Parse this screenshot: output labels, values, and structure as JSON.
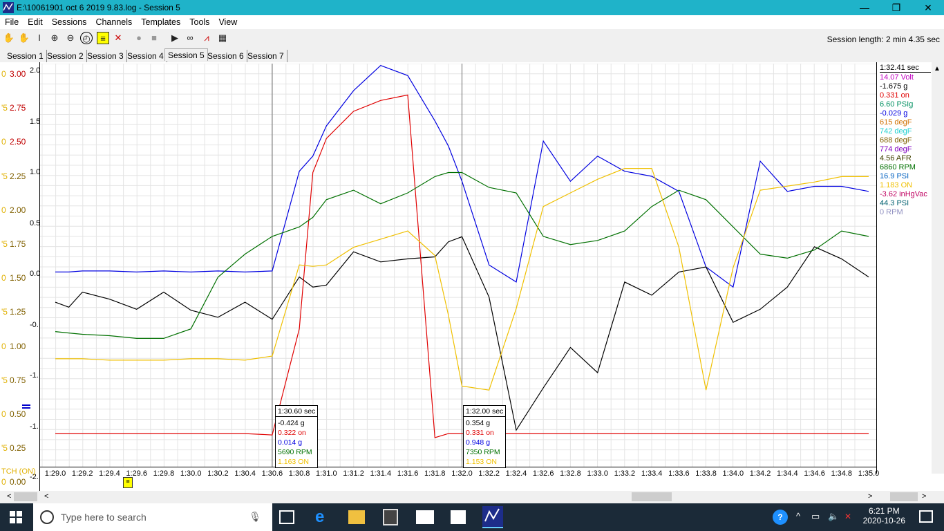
{
  "window": {
    "title": "E:\\10061901 oct 6 2019 9.83.log - Session 5",
    "minimize": "—",
    "maximize": "❐",
    "close": "✕"
  },
  "menu": [
    "File",
    "Edit",
    "Sessions",
    "Channels",
    "Templates",
    "Tools",
    "View"
  ],
  "toolbar": {
    "session_length": "Session length:  2 min 4.35 sec"
  },
  "tabs": [
    "Session 1",
    "Session 2",
    "Session 3",
    "Session 4",
    "Session 5",
    "Session 6",
    "Session 7"
  ],
  "active_tab": "Session 5",
  "y_axis_left": {
    "outer_yellow": [
      "0",
      "'5",
      "0",
      "'5",
      "0",
      "'5",
      "0",
      "'5",
      "0",
      "'5",
      "0",
      "'5",
      "0"
    ],
    "red_ticks": [
      "3.00",
      "2.75",
      "2.50",
      "2.25",
      "2.00",
      "1.75",
      "1.50",
      "1.25",
      "1.00",
      "0.75",
      "0.50",
      "0.25",
      "0.00"
    ],
    "inner_ticks": [
      "2.0",
      "1.5",
      "1.0",
      "0.5",
      "0.0",
      "-0.",
      "-1.",
      "-1.",
      "-2."
    ],
    "bottom_label": "TCH (ON)"
  },
  "x_axis": {
    "ticks": [
      "1:29.0",
      "1:29.2",
      "1:29.4",
      "1:29.6",
      "1:29.8",
      "1:30.0",
      "1:30.2",
      "1:30.4",
      "1:30.6",
      "1:30.8",
      "1:31.0",
      "1:31.2",
      "1:31.4",
      "1:31.6",
      "1:31.8",
      "1:32.0",
      "1:32.2",
      "1:32.4",
      "1:32.6",
      "1:32.8",
      "1:33.0",
      "1:33.2",
      "1:33.4",
      "1:33.6",
      "1:33.8",
      "1:34.0",
      "1:34.2",
      "1:34.4",
      "1:34.6",
      "1:34.8",
      "1:35.0"
    ]
  },
  "legend": {
    "time": "1:32.41 sec",
    "items": [
      {
        "text": "14.07 Volt",
        "color": "#c000c0"
      },
      {
        "text": "-1.675 g",
        "color": "#000000"
      },
      {
        "text": "0.331 on",
        "color": "#e00000"
      },
      {
        "text": "6.60 PSIg",
        "color": "#009060"
      },
      {
        "text": "-0.029 g",
        "color": "#0000e0"
      },
      {
        "text": "615 degF",
        "color": "#d07000"
      },
      {
        "text": "742 degF",
        "color": "#20d0d0"
      },
      {
        "text": "688 degF",
        "color": "#806000"
      },
      {
        "text": "774 degF",
        "color": "#8000c0"
      },
      {
        "text": "4.56 AFR",
        "color": "#404000"
      },
      {
        "text": "6860 RPM",
        "color": "#007000"
      },
      {
        "text": "16.9 PSI",
        "color": "#0060c0"
      },
      {
        "text": "1.183 ON",
        "color": "#f0c000"
      },
      {
        "text": "-3.62 inHgVac",
        "color": "#c00060"
      },
      {
        "text": "44.3 PSI",
        "color": "#006070"
      },
      {
        "text": "0 RPM",
        "color": "#9090c0"
      }
    ]
  },
  "cursors": [
    {
      "time": "1:30.60 sec",
      "lines": [
        {
          "text": "-0.424 g",
          "color": "#000000"
        },
        {
          "text": "0.322 on",
          "color": "#e00000"
        },
        {
          "text": "0.014 g",
          "color": "#0000e0"
        },
        {
          "text": "5690 RPM",
          "color": "#007000"
        },
        {
          "text": "1.163 ON",
          "color": "#f0c000"
        }
      ]
    },
    {
      "time": "1:32.00 sec",
      "lines": [
        {
          "text": "0.354 g",
          "color": "#000000"
        },
        {
          "text": "0.331 on",
          "color": "#e00000"
        },
        {
          "text": "0.948 g",
          "color": "#0000e0"
        },
        {
          "text": "7350 RPM",
          "color": "#007000"
        },
        {
          "text": "1.153 ON",
          "color": "#f0c000"
        }
      ]
    }
  ],
  "chart_data": {
    "type": "line",
    "x": [
      29.0,
      29.1,
      29.2,
      29.4,
      29.6,
      29.8,
      30.0,
      30.2,
      30.4,
      30.6,
      30.8,
      30.9,
      31.0,
      31.2,
      31.4,
      31.6,
      31.8,
      31.9,
      32.0,
      32.2,
      32.4,
      32.6,
      32.8,
      33.0,
      33.2,
      33.4,
      33.6,
      33.8,
      34.0,
      34.2,
      34.4,
      34.6,
      34.8,
      35.0
    ],
    "series": [
      {
        "color": "#0000e0",
        "values": [
          0.05,
          0.05,
          0.06,
          0.06,
          0.05,
          0.06,
          0.05,
          0.06,
          0.05,
          0.06,
          1.05,
          1.2,
          1.5,
          1.85,
          2.1,
          2.0,
          1.55,
          1.3,
          0.95,
          0.12,
          -0.05,
          1.35,
          0.95,
          1.2,
          1.05,
          1.0,
          0.85,
          0.1,
          -0.1,
          1.15,
          0.85,
          0.9,
          0.9,
          0.85
        ]
      },
      {
        "color": "#000000",
        "values": [
          -0.25,
          -0.3,
          -0.15,
          -0.22,
          -0.32,
          -0.15,
          -0.33,
          -0.4,
          -0.25,
          -0.42,
          0.0,
          -0.1,
          -0.08,
          0.25,
          0.15,
          0.18,
          0.2,
          0.35,
          0.4,
          -0.2,
          -1.52,
          -1.1,
          -0.7,
          -0.95,
          -0.05,
          -0.18,
          0.05,
          0.1,
          -0.45,
          -0.32,
          -0.1,
          0.3,
          0.18,
          0.0
        ]
      },
      {
        "color": "#e00000",
        "values": [
          0.33,
          0.33,
          0.33,
          0.33,
          0.33,
          0.33,
          0.33,
          0.33,
          0.33,
          0.32,
          1.1,
          2.25,
          2.5,
          2.7,
          2.78,
          2.82,
          0.3,
          0.33,
          0.33,
          0.33,
          0.33,
          0.33,
          0.33,
          0.33,
          0.33,
          0.33,
          0.33,
          0.33,
          0.33,
          0.33,
          0.33,
          0.33,
          0.33,
          0.33
        ]
      },
      {
        "color": "#007000",
        "values": [
          1.08,
          1.07,
          1.06,
          1.05,
          1.03,
          1.03,
          1.1,
          1.48,
          1.65,
          1.78,
          1.85,
          1.92,
          2.05,
          2.12,
          2.02,
          2.1,
          2.22,
          2.25,
          2.25,
          2.14,
          2.1,
          1.78,
          1.72,
          1.75,
          1.82,
          2.0,
          2.12,
          2.05,
          1.85,
          1.65,
          1.62,
          1.68,
          1.82,
          1.78
        ]
      },
      {
        "color": "#f0c000",
        "values": [
          0.88,
          0.88,
          0.88,
          0.87,
          0.87,
          0.87,
          0.88,
          0.88,
          0.87,
          0.9,
          1.57,
          1.56,
          1.57,
          1.7,
          1.76,
          1.82,
          1.64,
          1.2,
          0.68,
          0.65,
          1.25,
          2.0,
          2.1,
          2.2,
          2.28,
          2.28,
          1.7,
          0.65,
          1.55,
          2.12,
          2.15,
          2.18,
          2.22,
          2.22
        ]
      }
    ]
  }
}
